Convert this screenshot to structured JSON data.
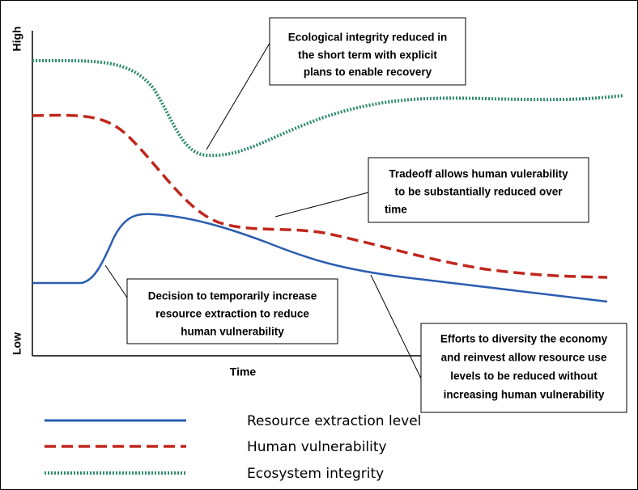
{
  "axes": {
    "y_high": "High",
    "y_low": "Low",
    "x_label": "Time"
  },
  "annotations": [
    {
      "lines": [
        "Ecological integrity reduced in",
        "the short term with explicit",
        "plans to enable recovery"
      ]
    },
    {
      "lines": [
        "Tradeoff allows human vulerability",
        "to be substantially reduced over",
        "time"
      ]
    },
    {
      "lines": [
        "Decision to temporarily increase",
        "resource extraction to reduce",
        "human vulnerability"
      ]
    },
    {
      "lines": [
        "Efforts to diversity the economy",
        "and reinvest allow resource use",
        "levels to be reduced without",
        "increasing human vulnerability"
      ]
    }
  ],
  "legend": [
    "Resource extraction level",
    "Human vulnerability",
    "Ecosystem integrity"
  ]
}
